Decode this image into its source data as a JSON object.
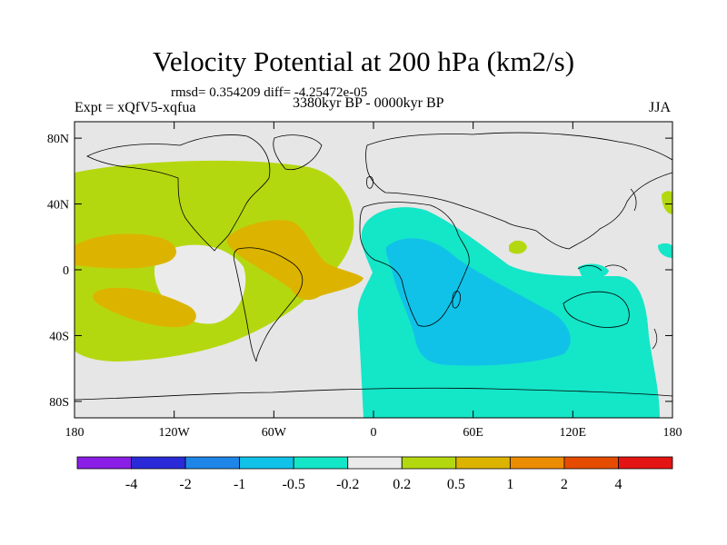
{
  "header": {
    "title": "Velocity Potential at 200 hPa (km2/s)",
    "stats": "rmsd= 0.354209 diff= -4.25472e-05",
    "left_label": "Expt = xQfV5-xqfua",
    "center_label": "3380kyr BP - 0000kyr BP",
    "right_label": "JJA"
  },
  "map": {
    "background_color": "#e6e6e6",
    "coastline_color": "#000000",
    "lat_ticks": [
      {
        "value": 80,
        "label": "80N"
      },
      {
        "value": 40,
        "label": "40N"
      },
      {
        "value": 0,
        "label": "0"
      },
      {
        "value": -40,
        "label": "40S"
      },
      {
        "value": -80,
        "label": "80S"
      }
    ],
    "lon_ticks": [
      {
        "value": -180,
        "label": "180"
      },
      {
        "value": -120,
        "label": "120W"
      },
      {
        "value": -60,
        "label": "60W"
      },
      {
        "value": 0,
        "label": "0"
      },
      {
        "value": 60,
        "label": "60E"
      },
      {
        "value": 120,
        "label": "120E"
      },
      {
        "value": 180,
        "label": "180"
      }
    ]
  },
  "colorbar": {
    "colors": [
      "#8a1ee6",
      "#2a2ad8",
      "#1e86e8",
      "#10c2e8",
      "#14e6c8",
      "#ebebeb",
      "#b4d810",
      "#dcb400",
      "#ec8c00",
      "#e64c00",
      "#e41414"
    ],
    "labels": [
      "-4",
      "-2",
      "-1",
      "-0.5",
      "-0.2",
      "0.2",
      "0.5",
      "1",
      "2",
      "4"
    ]
  }
}
